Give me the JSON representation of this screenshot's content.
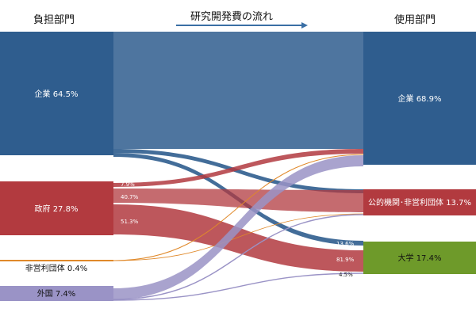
{
  "header": {
    "left": "負担部門",
    "center": "研究開発費の流れ",
    "right": "使用部門"
  },
  "sources": [
    {
      "id": "kigyo",
      "label": "企業 64.5%",
      "color": "#2f5d8e"
    },
    {
      "id": "seifu",
      "label": "政府 27.8%",
      "color": "#b23a3f"
    },
    {
      "id": "hieiri",
      "label": "非営利団体 0.4%",
      "color": "#e0892a"
    },
    {
      "id": "gaikoku",
      "label": "外国 7.4%",
      "color": "#9a93c6"
    }
  ],
  "targets": [
    {
      "id": "kigyo_u",
      "label": "企業 68.9%",
      "color": "#2f5d8e"
    },
    {
      "id": "kouteki_u",
      "label": "公的機関･非営利団体 13.7%",
      "color": "#b23a3f"
    },
    {
      "id": "daigaku_u",
      "label": "大学 17.4%",
      "color": "#6e9a2a"
    }
  ],
  "flow_labels": {
    "seifu_to_kigyo": "7.9%",
    "seifu_to_kouteki": "40.7%",
    "seifu_to_daigaku": "51.3%",
    "daigaku_from_kigyo": "13.6%",
    "daigaku_from_seifu": "81.9%",
    "daigaku_from_gaikoku": "4.5%"
  }
}
